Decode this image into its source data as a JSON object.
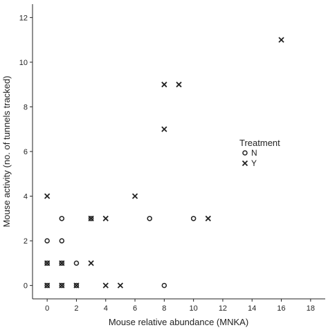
{
  "chart_data": {
    "type": "scatter",
    "title": "",
    "xlabel": "Mouse relative abundance (MNKA)",
    "ylabel": "Mouse activity (no. of tunnels tracked)",
    "xlim": [
      -1,
      19
    ],
    "ylim": [
      -0.6,
      12.6
    ],
    "xticks": [
      0,
      2,
      4,
      6,
      8,
      10,
      12,
      14,
      16,
      18
    ],
    "yticks": [
      0,
      2,
      4,
      6,
      8,
      10,
      12
    ],
    "grid": false,
    "legend": {
      "title": "Treatment",
      "placement": "right",
      "entries": [
        {
          "label": "N",
          "marker": "circle"
        },
        {
          "label": "Y",
          "marker": "cross"
        }
      ]
    },
    "series": [
      {
        "name": "N",
        "marker": "circle",
        "points": [
          {
            "x": 0,
            "y": 0
          },
          {
            "x": 0,
            "y": 1
          },
          {
            "x": 0,
            "y": 2
          },
          {
            "x": 1,
            "y": 0
          },
          {
            "x": 1,
            "y": 1
          },
          {
            "x": 1,
            "y": 2
          },
          {
            "x": 1,
            "y": 3
          },
          {
            "x": 2,
            "y": 0
          },
          {
            "x": 2,
            "y": 1
          },
          {
            "x": 3,
            "y": 3
          },
          {
            "x": 7,
            "y": 3
          },
          {
            "x": 8,
            "y": 0
          },
          {
            "x": 10,
            "y": 3
          }
        ]
      },
      {
        "name": "Y",
        "marker": "cross",
        "points": [
          {
            "x": 0,
            "y": 0
          },
          {
            "x": 0,
            "y": 1
          },
          {
            "x": 0,
            "y": 4
          },
          {
            "x": 1,
            "y": 0
          },
          {
            "x": 1,
            "y": 1
          },
          {
            "x": 2,
            "y": 0
          },
          {
            "x": 3,
            "y": 1
          },
          {
            "x": 3,
            "y": 3
          },
          {
            "x": 4,
            "y": 0
          },
          {
            "x": 4,
            "y": 3
          },
          {
            "x": 5,
            "y": 0
          },
          {
            "x": 6,
            "y": 4
          },
          {
            "x": 8,
            "y": 7
          },
          {
            "x": 8,
            "y": 9
          },
          {
            "x": 9,
            "y": 9
          },
          {
            "x": 11,
            "y": 3
          },
          {
            "x": 16,
            "y": 11
          }
        ]
      }
    ],
    "colors": {
      "ink": "#222222",
      "background": "#ffffff"
    }
  }
}
